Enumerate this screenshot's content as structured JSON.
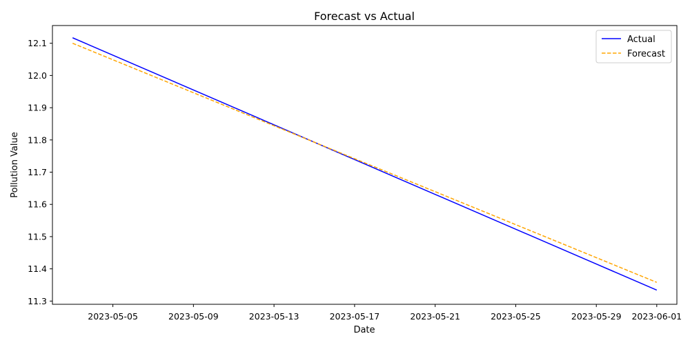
{
  "chart_data": {
    "type": "line",
    "title": "Forecast vs Actual",
    "xlabel": "Date",
    "ylabel": "Pollution Value",
    "x_tick_labels": [
      "2023-05-05",
      "2023-05-09",
      "2023-05-13",
      "2023-05-17",
      "2023-05-21",
      "2023-05-25",
      "2023-05-29",
      "2023-06-01"
    ],
    "y_tick_labels": [
      "11.3",
      "11.4",
      "11.5",
      "11.6",
      "11.7",
      "11.8",
      "11.9",
      "12.0",
      "12.1"
    ],
    "xlim": [
      "2023-05-02",
      "2023-06-02"
    ],
    "ylim": [
      11.29,
      12.155
    ],
    "grid": false,
    "legend_position": "top-right",
    "series": [
      {
        "name": "Actual",
        "color": "#0000ff",
        "style": "solid",
        "points": [
          {
            "x": "2023-05-03",
            "y": 12.117
          },
          {
            "x": "2023-06-01",
            "y": 11.334
          }
        ]
      },
      {
        "name": "Forecast",
        "color": "#ffa500",
        "style": "dashed",
        "points": [
          {
            "x": "2023-05-03",
            "y": 12.1
          },
          {
            "x": "2023-06-01",
            "y": 11.358
          }
        ]
      }
    ]
  }
}
